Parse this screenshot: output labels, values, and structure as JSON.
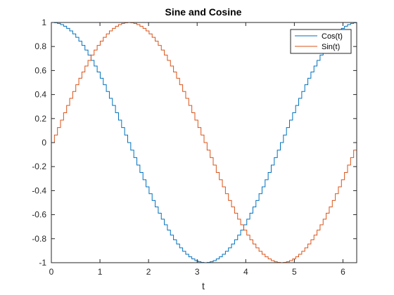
{
  "chart_data": {
    "type": "line",
    "style": "stairs",
    "title": "Sine and Cosine",
    "xlabel": "t",
    "ylabel": "",
    "xlim": [
      0,
      6.2832
    ],
    "ylim": [
      -1,
      1
    ],
    "grid": false,
    "legend_position": "top-right",
    "x_ticks": [
      0,
      1,
      2,
      3,
      4,
      5,
      6
    ],
    "x_tick_labels": [
      "0",
      "1",
      "2",
      "3",
      "4",
      "5",
      "6"
    ],
    "y_ticks": [
      1,
      0.8,
      0.6,
      0.4,
      0.2,
      0,
      -0.2,
      -0.4,
      -0.6,
      -0.8,
      -1
    ],
    "y_tick_labels": [
      "1",
      "0.8",
      "0.6",
      "0.4",
      "0.2",
      "0",
      "-0.2",
      "-0.4",
      "-0.6",
      "-0.8",
      "-1"
    ],
    "series": [
      {
        "name": "Cos(t)",
        "color": "#0072BD",
        "function": "cos",
        "x_start": 0,
        "x_end": 6.2832,
        "step_count": 100
      },
      {
        "name": "Sin(t)",
        "color": "#D95319",
        "function": "sin",
        "x_start": 0,
        "x_end": 6.2832,
        "step_count": 100
      }
    ]
  }
}
